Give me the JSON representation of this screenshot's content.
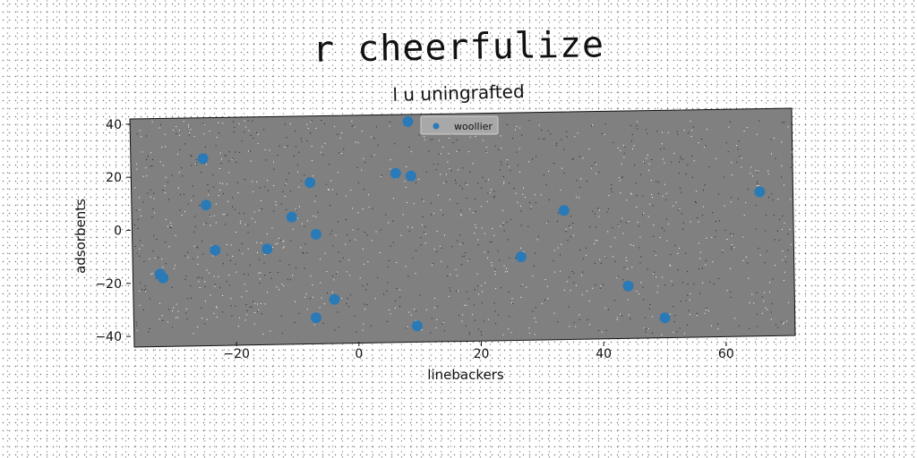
{
  "chart_data": {
    "type": "scatter",
    "title": "r cheerfulize",
    "subtitle": "l u uningrafted",
    "xlabel": "linebackers",
    "ylabel": "adsorbents",
    "xlim": [
      -37,
      71
    ],
    "ylim": [
      -42,
      44
    ],
    "xticks": [
      -20,
      0,
      20,
      40,
      60
    ],
    "yticks": [
      -40,
      -20,
      0,
      20,
      40
    ],
    "grid": false,
    "legend_position": "top-center",
    "colors": {
      "plot_bg": "#808080",
      "marker": "#2a7ab8"
    },
    "series": [
      {
        "name": "woollier",
        "points": [
          [
            8,
            41
          ],
          [
            -25.5,
            27
          ],
          [
            -25,
            9.5
          ],
          [
            -8,
            18
          ],
          [
            6,
            21.5
          ],
          [
            8.5,
            20.5
          ],
          [
            -11,
            5
          ],
          [
            -7,
            -1.5
          ],
          [
            -23.5,
            -7.5
          ],
          [
            -15,
            -7
          ],
          [
            -32.5,
            -16.5
          ],
          [
            -32,
            -18
          ],
          [
            -4,
            -26
          ],
          [
            -7,
            -33
          ],
          [
            9.5,
            -36
          ],
          [
            26.5,
            -10
          ],
          [
            33.5,
            7.5
          ],
          [
            44,
            -21
          ],
          [
            50,
            -33
          ],
          [
            65.5,
            14.5
          ]
        ]
      }
    ]
  }
}
